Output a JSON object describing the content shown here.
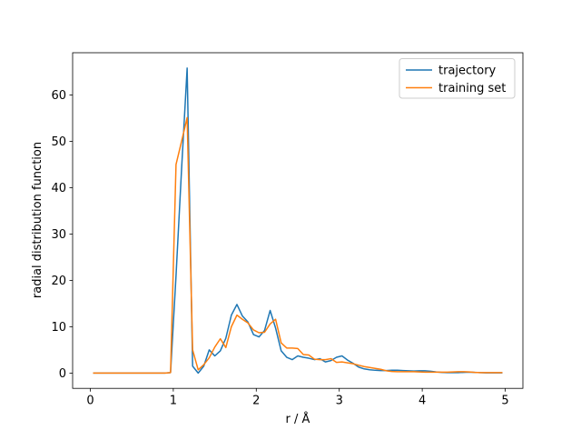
{
  "chart_data": {
    "type": "line",
    "title": "",
    "xlabel": "r / Å",
    "ylabel": "radial distribution function",
    "xlim": [
      -0.213,
      5.213
    ],
    "ylim": [
      -3.3,
      69.1
    ],
    "xticks": [
      "0",
      "1",
      "2",
      "3",
      "4",
      "5"
    ],
    "ytick_values": [
      0,
      10,
      20,
      30,
      40,
      50,
      60
    ],
    "yticks": [
      "0",
      "10",
      "20",
      "30",
      "40",
      "50",
      "60"
    ],
    "xtick_values": [
      0,
      1,
      2,
      3,
      4,
      5
    ],
    "grid": false,
    "legend_position": "upper right",
    "frame_color": "#000000",
    "background_color": "#ffffff",
    "legend_border_color": "#cccccc",
    "x": [
      0.033,
      0.1,
      0.167,
      0.233,
      0.3,
      0.367,
      0.433,
      0.5,
      0.567,
      0.633,
      0.7,
      0.767,
      0.833,
      0.9,
      0.967,
      1.033,
      1.1,
      1.167,
      1.233,
      1.3,
      1.367,
      1.433,
      1.5,
      1.567,
      1.633,
      1.7,
      1.767,
      1.833,
      1.9,
      1.967,
      2.033,
      2.1,
      2.167,
      2.233,
      2.3,
      2.367,
      2.433,
      2.5,
      2.567,
      2.633,
      2.7,
      2.767,
      2.833,
      2.9,
      2.967,
      3.033,
      3.1,
      3.167,
      3.233,
      3.3,
      3.367,
      3.433,
      3.5,
      3.567,
      3.633,
      3.7,
      3.767,
      3.833,
      3.9,
      3.967,
      4.033,
      4.1,
      4.167,
      4.233,
      4.3,
      4.367,
      4.433,
      4.5,
      4.567,
      4.633,
      4.7,
      4.767,
      4.833,
      4.9,
      4.967
    ],
    "series": [
      {
        "name": "trajectory",
        "color": "#1f77b4",
        "values": [
          0,
          0,
          0,
          0,
          0,
          0,
          0,
          0,
          0,
          0,
          0,
          0,
          0,
          0,
          0.1,
          21,
          44,
          65.8,
          1.5,
          0,
          1.5,
          5.0,
          3.7,
          4.8,
          7.5,
          12.5,
          14.8,
          12.3,
          11.0,
          8.3,
          7.8,
          9.2,
          13.5,
          9.7,
          4.8,
          3.4,
          2.9,
          3.7,
          3.4,
          3.2,
          2.9,
          3.1,
          2.4,
          2.7,
          3.4,
          3.7,
          2.8,
          2.1,
          1.3,
          0.9,
          0.7,
          0.6,
          0.55,
          0.55,
          0.6,
          0.6,
          0.55,
          0.5,
          0.45,
          0.5,
          0.5,
          0.4,
          0.25,
          0.15,
          0.1,
          0.1,
          0.1,
          0.15,
          0.2,
          0.15,
          0.1,
          0.05,
          0.05,
          0.05,
          0.05
        ]
      },
      {
        "name": "training set",
        "color": "#ff7f0e",
        "values": [
          0,
          0,
          0,
          0,
          0,
          0,
          0,
          0,
          0,
          0,
          0,
          0,
          0,
          0,
          0.1,
          45,
          50,
          55.1,
          5,
          0.7,
          1.8,
          3.3,
          5.6,
          7.4,
          5.5,
          10.0,
          12.5,
          11.6,
          10.8,
          9.3,
          8.7,
          8.8,
          10.6,
          11.6,
          6.5,
          5.4,
          5.4,
          5.3,
          4.0,
          3.9,
          3.0,
          2.9,
          2.9,
          3.1,
          2.3,
          2.4,
          2.2,
          2.0,
          1.7,
          1.4,
          1.2,
          1.0,
          0.8,
          0.5,
          0.35,
          0.3,
          0.3,
          0.3,
          0.3,
          0.25,
          0.2,
          0.2,
          0.2,
          0.2,
          0.2,
          0.25,
          0.3,
          0.3,
          0.25,
          0.15,
          0.1,
          0.1,
          0.1,
          0.1,
          0.1
        ]
      }
    ]
  }
}
